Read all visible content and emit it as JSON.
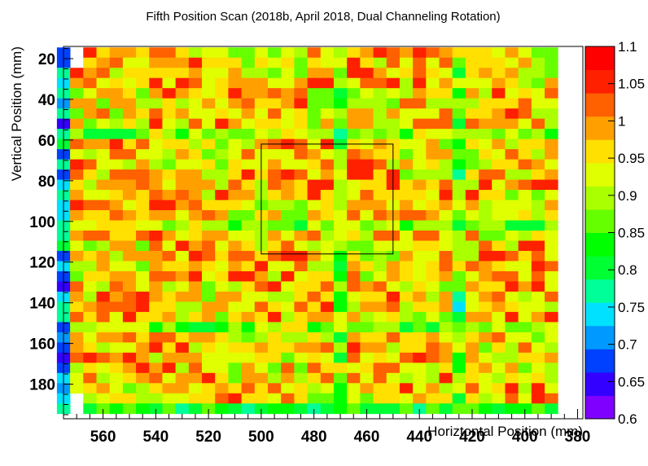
{
  "chart_data": {
    "type": "heatmap",
    "title": "Fifth Position Scan (2018b, April 2018, Dual Channeling Rotation)",
    "xlabel": "Horiztontal Position (mm)",
    "ylabel": "Vertical Position (mm)",
    "x_reversed": true,
    "xlim": [
      575,
      378
    ],
    "ylim": [
      197,
      14
    ],
    "x_ticks": [
      560,
      540,
      520,
      500,
      480,
      460,
      440,
      420,
      400,
      380
    ],
    "y_ticks": [
      20,
      40,
      60,
      80,
      100,
      120,
      140,
      160,
      180
    ],
    "x_start": 575,
    "x_step": -5,
    "n_cols": 38,
    "y_start": 17,
    "y_step": 5,
    "n_rows": 36,
    "color_scale": {
      "min": 0.6,
      "max": 1.1,
      "ticks": [
        "0.6",
        "0.65",
        "0.7",
        "0.75",
        "0.8",
        "0.85",
        "0.9",
        "0.95",
        "1",
        "1.05",
        "1.1"
      ]
    },
    "palette": [
      "#7f00ff",
      "#3300ff",
      "#0040ff",
      "#0099ff",
      "#00e0ff",
      "#00ff99",
      "#00ff33",
      "#00ff00",
      "#66ff00",
      "#aaff00",
      "#e0ff00",
      "#ffe000",
      "#ffa000",
      "#ff6000",
      "#ff2000",
      "#ff0000"
    ],
    "box": {
      "x1": 500,
      "x2": 450,
      "y1": 62,
      "y2": 116
    },
    "grid": false
  }
}
